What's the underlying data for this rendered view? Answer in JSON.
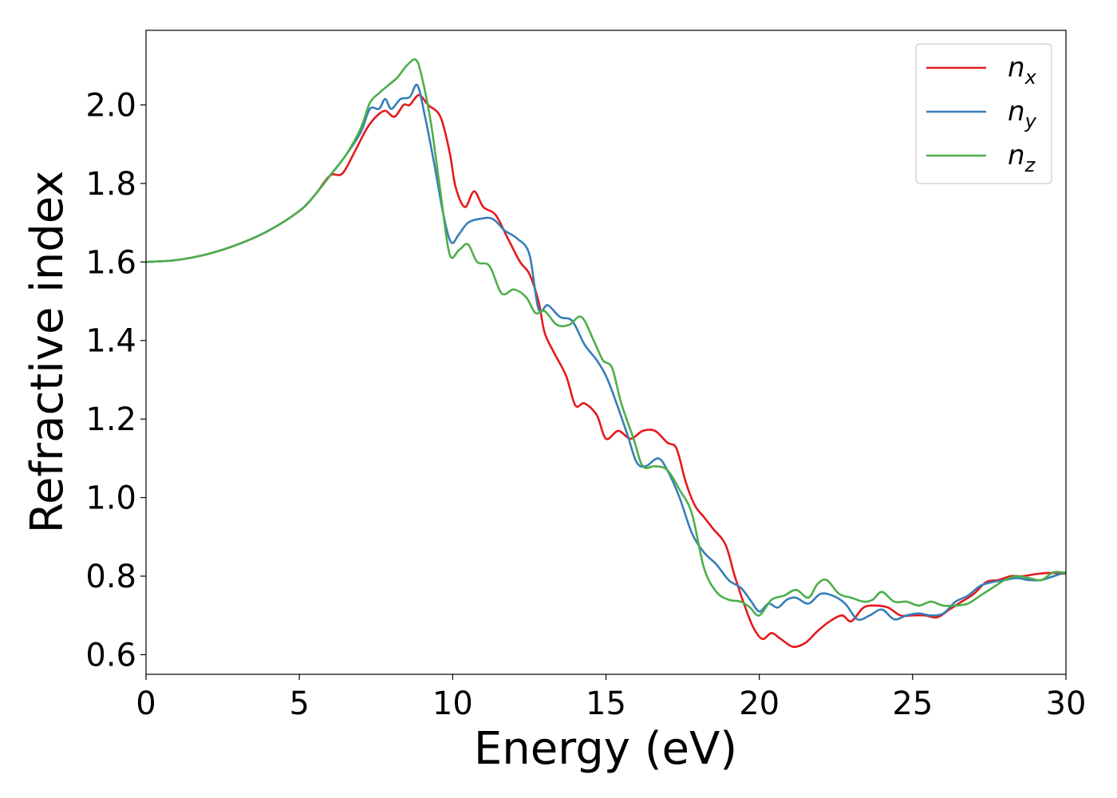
{
  "chart_data": {
    "type": "line",
    "title": "",
    "xlabel": "Energy (eV)",
    "ylabel": "Refractive index",
    "xlim": [
      0,
      30
    ],
    "ylim": [
      0.55,
      2.19
    ],
    "xticks": [
      0,
      5,
      10,
      15,
      20,
      25,
      30
    ],
    "yticks": [
      0.6,
      0.8,
      1.0,
      1.2,
      1.4,
      1.6,
      1.8,
      2.0
    ],
    "xtick_labels": [
      "0",
      "5",
      "10",
      "15",
      "20",
      "25",
      "30"
    ],
    "ytick_labels": [
      "0.6",
      "0.8",
      "1.0",
      "1.2",
      "1.4",
      "1.6",
      "1.8",
      "2.0"
    ],
    "grid": false,
    "legend_position": "top-right",
    "series": [
      {
        "name_base": "n",
        "name_sub": "x",
        "color": "#e41a1c",
        "points": [
          [
            0,
            1.6
          ],
          [
            1,
            1.605
          ],
          [
            2,
            1.62
          ],
          [
            3,
            1.645
          ],
          [
            4,
            1.68
          ],
          [
            5,
            1.73
          ],
          [
            5.5,
            1.77
          ],
          [
            6,
            1.82
          ],
          [
            6.4,
            1.825
          ],
          [
            6.8,
            1.88
          ],
          [
            7.2,
            1.94
          ],
          [
            7.5,
            1.97
          ],
          [
            7.8,
            1.985
          ],
          [
            8.1,
            1.97
          ],
          [
            8.4,
            2.0
          ],
          [
            8.6,
            2.0
          ],
          [
            8.9,
            2.025
          ],
          [
            9.2,
            2.0
          ],
          [
            9.6,
            1.97
          ],
          [
            9.9,
            1.88
          ],
          [
            10.1,
            1.79
          ],
          [
            10.4,
            1.74
          ],
          [
            10.7,
            1.78
          ],
          [
            11.0,
            1.74
          ],
          [
            11.4,
            1.72
          ],
          [
            11.8,
            1.66
          ],
          [
            12.2,
            1.6
          ],
          [
            12.5,
            1.57
          ],
          [
            12.8,
            1.5
          ],
          [
            13.0,
            1.42
          ],
          [
            13.3,
            1.37
          ],
          [
            13.7,
            1.31
          ],
          [
            14.0,
            1.235
          ],
          [
            14.3,
            1.24
          ],
          [
            14.7,
            1.21
          ],
          [
            15.0,
            1.15
          ],
          [
            15.4,
            1.17
          ],
          [
            15.8,
            1.15
          ],
          [
            16.2,
            1.17
          ],
          [
            16.6,
            1.17
          ],
          [
            17.0,
            1.14
          ],
          [
            17.3,
            1.125
          ],
          [
            17.6,
            1.04
          ],
          [
            17.9,
            0.98
          ],
          [
            18.2,
            0.95
          ],
          [
            18.5,
            0.92
          ],
          [
            18.9,
            0.88
          ],
          [
            19.2,
            0.8
          ],
          [
            19.5,
            0.73
          ],
          [
            19.8,
            0.67
          ],
          [
            20.1,
            0.64
          ],
          [
            20.4,
            0.655
          ],
          [
            20.7,
            0.64
          ],
          [
            21.1,
            0.62
          ],
          [
            21.5,
            0.63
          ],
          [
            21.9,
            0.66
          ],
          [
            22.3,
            0.685
          ],
          [
            22.7,
            0.7
          ],
          [
            23.0,
            0.685
          ],
          [
            23.4,
            0.72
          ],
          [
            23.8,
            0.725
          ],
          [
            24.2,
            0.72
          ],
          [
            24.6,
            0.7
          ],
          [
            25.0,
            0.7
          ],
          [
            25.4,
            0.7
          ],
          [
            25.8,
            0.695
          ],
          [
            26.2,
            0.715
          ],
          [
            26.6,
            0.735
          ],
          [
            27.0,
            0.755
          ],
          [
            27.4,
            0.785
          ],
          [
            27.8,
            0.79
          ],
          [
            28.2,
            0.8
          ],
          [
            28.6,
            0.8
          ],
          [
            29.0,
            0.805
          ],
          [
            29.4,
            0.808
          ],
          [
            29.7,
            0.808
          ],
          [
            30,
            0.806
          ]
        ]
      },
      {
        "name_base": "n",
        "name_sub": "y",
        "color": "#377eb8",
        "points": [
          [
            0,
            1.6
          ],
          [
            1,
            1.605
          ],
          [
            2,
            1.62
          ],
          [
            3,
            1.645
          ],
          [
            4,
            1.68
          ],
          [
            5,
            1.73
          ],
          [
            5.5,
            1.77
          ],
          [
            6,
            1.82
          ],
          [
            6.5,
            1.87
          ],
          [
            7.0,
            1.93
          ],
          [
            7.3,
            1.99
          ],
          [
            7.6,
            1.99
          ],
          [
            7.8,
            2.015
          ],
          [
            8.0,
            1.99
          ],
          [
            8.3,
            2.015
          ],
          [
            8.6,
            2.02
          ],
          [
            8.85,
            2.05
          ],
          [
            9.1,
            1.97
          ],
          [
            9.4,
            1.85
          ],
          [
            9.7,
            1.72
          ],
          [
            9.95,
            1.65
          ],
          [
            10.2,
            1.67
          ],
          [
            10.5,
            1.7
          ],
          [
            10.9,
            1.71
          ],
          [
            11.3,
            1.71
          ],
          [
            11.7,
            1.68
          ],
          [
            12.1,
            1.66
          ],
          [
            12.5,
            1.62
          ],
          [
            12.8,
            1.48
          ],
          [
            13.1,
            1.49
          ],
          [
            13.5,
            1.46
          ],
          [
            13.9,
            1.45
          ],
          [
            14.3,
            1.39
          ],
          [
            14.7,
            1.35
          ],
          [
            15.0,
            1.31
          ],
          [
            15.3,
            1.25
          ],
          [
            15.7,
            1.16
          ],
          [
            16.0,
            1.09
          ],
          [
            16.3,
            1.08
          ],
          [
            16.7,
            1.1
          ],
          [
            17.0,
            1.07
          ],
          [
            17.4,
            1.0
          ],
          [
            17.8,
            0.91
          ],
          [
            18.2,
            0.86
          ],
          [
            18.6,
            0.83
          ],
          [
            19.0,
            0.79
          ],
          [
            19.4,
            0.77
          ],
          [
            19.7,
            0.74
          ],
          [
            20.0,
            0.71
          ],
          [
            20.3,
            0.73
          ],
          [
            20.6,
            0.72
          ],
          [
            20.9,
            0.74
          ],
          [
            21.2,
            0.745
          ],
          [
            21.6,
            0.73
          ],
          [
            22.0,
            0.755
          ],
          [
            22.4,
            0.75
          ],
          [
            22.8,
            0.73
          ],
          [
            23.2,
            0.69
          ],
          [
            23.6,
            0.7
          ],
          [
            24.0,
            0.715
          ],
          [
            24.4,
            0.69
          ],
          [
            24.8,
            0.7
          ],
          [
            25.2,
            0.705
          ],
          [
            25.6,
            0.7
          ],
          [
            26.0,
            0.705
          ],
          [
            26.4,
            0.735
          ],
          [
            26.8,
            0.75
          ],
          [
            27.2,
            0.775
          ],
          [
            27.6,
            0.785
          ],
          [
            28.0,
            0.79
          ],
          [
            28.4,
            0.795
          ],
          [
            28.8,
            0.79
          ],
          [
            29.2,
            0.79
          ],
          [
            29.6,
            0.8
          ],
          [
            30,
            0.81
          ]
        ]
      },
      {
        "name_base": "n",
        "name_sub": "z",
        "color": "#4daf4a",
        "points": [
          [
            0,
            1.6
          ],
          [
            1,
            1.605
          ],
          [
            2,
            1.62
          ],
          [
            3,
            1.645
          ],
          [
            4,
            1.68
          ],
          [
            5,
            1.73
          ],
          [
            5.5,
            1.77
          ],
          [
            6,
            1.82
          ],
          [
            6.5,
            1.87
          ],
          [
            7.0,
            1.94
          ],
          [
            7.3,
            2.005
          ],
          [
            7.6,
            2.03
          ],
          [
            7.9,
            2.05
          ],
          [
            8.2,
            2.07
          ],
          [
            8.5,
            2.1
          ],
          [
            8.8,
            2.115
          ],
          [
            9.0,
            2.07
          ],
          [
            9.3,
            1.95
          ],
          [
            9.6,
            1.78
          ],
          [
            9.9,
            1.62
          ],
          [
            10.2,
            1.63
          ],
          [
            10.5,
            1.645
          ],
          [
            10.8,
            1.6
          ],
          [
            11.2,
            1.59
          ],
          [
            11.6,
            1.52
          ],
          [
            12.0,
            1.53
          ],
          [
            12.4,
            1.51
          ],
          [
            12.7,
            1.47
          ],
          [
            13.0,
            1.475
          ],
          [
            13.4,
            1.44
          ],
          [
            13.8,
            1.44
          ],
          [
            14.2,
            1.46
          ],
          [
            14.6,
            1.4
          ],
          [
            14.9,
            1.35
          ],
          [
            15.2,
            1.33
          ],
          [
            15.5,
            1.24
          ],
          [
            15.9,
            1.15
          ],
          [
            16.2,
            1.08
          ],
          [
            16.6,
            1.08
          ],
          [
            17.0,
            1.07
          ],
          [
            17.4,
            1.02
          ],
          [
            17.8,
            0.96
          ],
          [
            18.2,
            0.82
          ],
          [
            18.6,
            0.76
          ],
          [
            19.0,
            0.74
          ],
          [
            19.4,
            0.735
          ],
          [
            19.7,
            0.72
          ],
          [
            20.0,
            0.7
          ],
          [
            20.4,
            0.74
          ],
          [
            20.8,
            0.75
          ],
          [
            21.2,
            0.765
          ],
          [
            21.6,
            0.745
          ],
          [
            21.9,
            0.78
          ],
          [
            22.2,
            0.79
          ],
          [
            22.6,
            0.755
          ],
          [
            23.0,
            0.745
          ],
          [
            23.4,
            0.735
          ],
          [
            23.7,
            0.74
          ],
          [
            24.0,
            0.76
          ],
          [
            24.4,
            0.735
          ],
          [
            24.8,
            0.735
          ],
          [
            25.2,
            0.725
          ],
          [
            25.6,
            0.735
          ],
          [
            26.0,
            0.725
          ],
          [
            26.4,
            0.725
          ],
          [
            26.8,
            0.73
          ],
          [
            27.2,
            0.75
          ],
          [
            27.6,
            0.77
          ],
          [
            28.0,
            0.79
          ],
          [
            28.4,
            0.8
          ],
          [
            28.8,
            0.795
          ],
          [
            29.2,
            0.79
          ],
          [
            29.6,
            0.81
          ],
          [
            30,
            0.808
          ]
        ]
      }
    ]
  }
}
